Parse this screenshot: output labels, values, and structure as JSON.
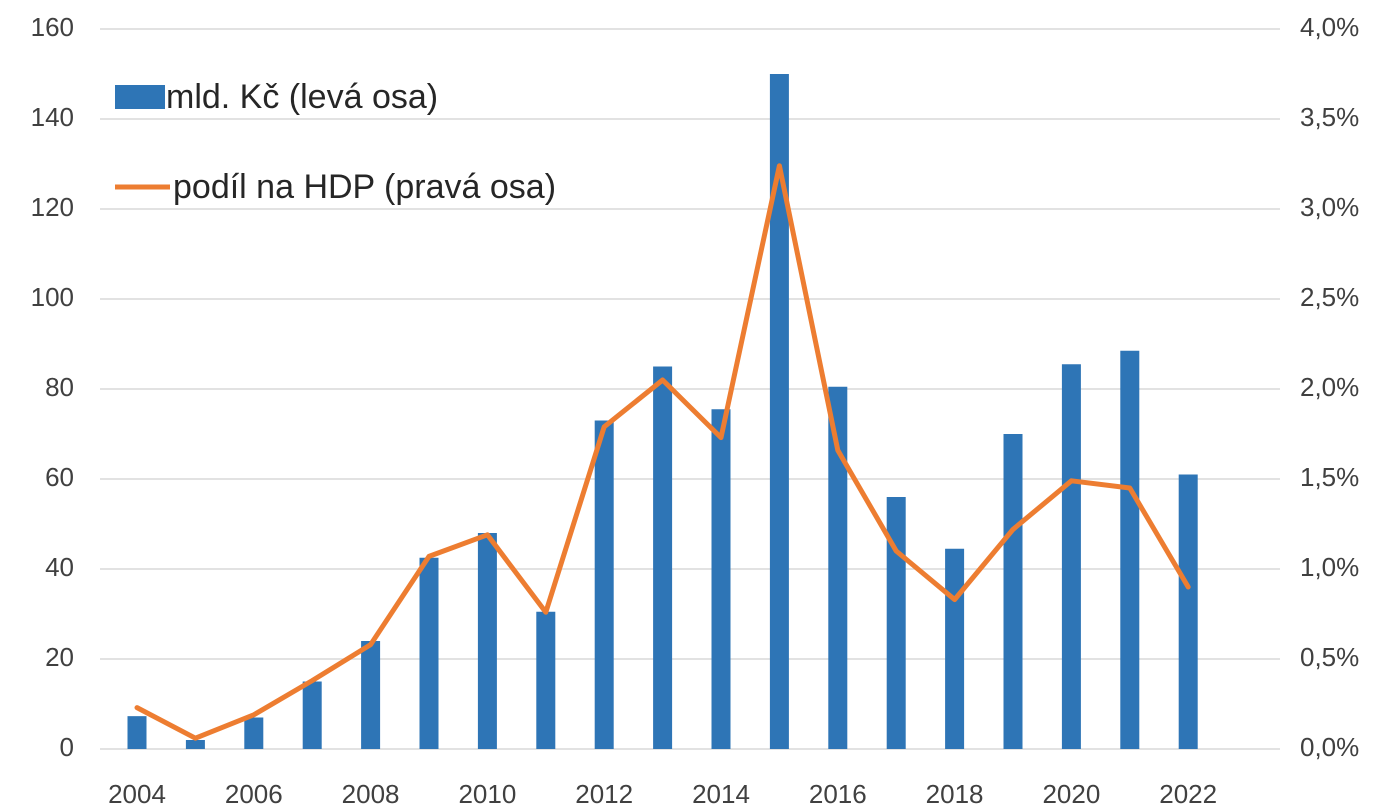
{
  "chart_data": {
    "type": "bar_line",
    "categories": [
      "2004",
      null,
      "2006",
      null,
      "2008",
      null,
      "2010",
      null,
      "2012",
      null,
      "2014",
      null,
      "2016",
      null,
      "2018",
      null,
      "2020",
      null,
      "2022"
    ],
    "series": [
      {
        "name": "mld. Kč (levá osa)",
        "type": "bar",
        "color": "#2e75b6",
        "axis": "y",
        "values": [
          7.3,
          2,
          7,
          15,
          24,
          42.5,
          48,
          30.5,
          73,
          85,
          75.5,
          150,
          80.5,
          56,
          44.5,
          70,
          85.5,
          88.5,
          61
        ]
      },
      {
        "name": "podíl na HDP (pravá osa)",
        "type": "line",
        "color": "#ed7d31",
        "axis": "y2",
        "values": [
          0.23,
          0.06,
          0.19,
          0.38,
          0.58,
          1.07,
          1.19,
          0.76,
          1.79,
          2.05,
          1.73,
          3.24,
          1.66,
          1.1,
          0.83,
          1.22,
          1.49,
          1.45,
          0.9
        ]
      }
    ],
    "ylim": [
      0,
      160
    ],
    "yticks": [
      0,
      20,
      40,
      60,
      80,
      100,
      120,
      140,
      160
    ],
    "y2lim": [
      0,
      4
    ],
    "y2ticks": [
      {
        "value": 0,
        "label": "0,0%"
      },
      {
        "value": 0.5,
        "label": "0,5%"
      },
      {
        "value": 1,
        "label": "1,0%"
      },
      {
        "value": 1.5,
        "label": "1,5%"
      },
      {
        "value": 2,
        "label": "2,0%"
      },
      {
        "value": 2.5,
        "label": "2,5%"
      },
      {
        "value": 3,
        "label": "3,0%"
      },
      {
        "value": 3.5,
        "label": "3,5%"
      },
      {
        "value": 4,
        "label": "4,0%"
      }
    ],
    "grid": true,
    "legend": "upper left"
  }
}
